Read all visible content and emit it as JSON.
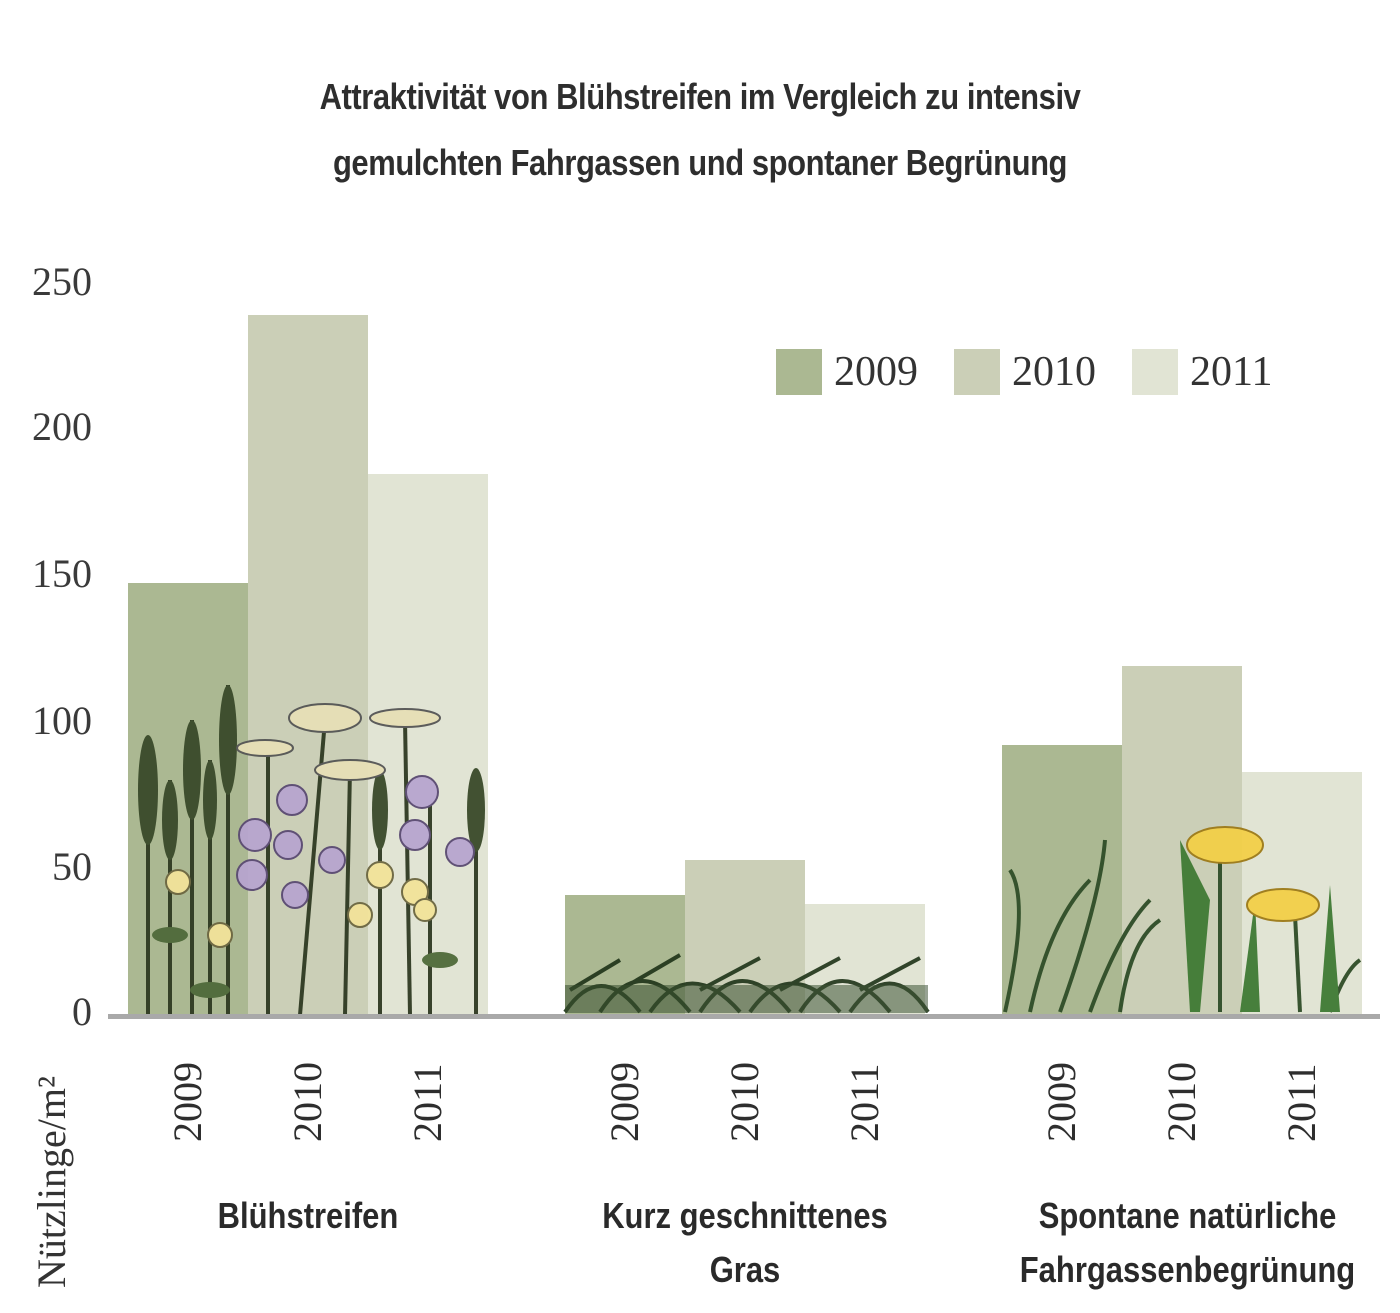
{
  "chart": {
    "title_line1": "Attraktivität von Blühstreifen im Vergleich zu intensiv",
    "title_line2": "gemulchten Fahrgassen und spontaner Begrünung",
    "ylabel": "Nützlinge/m²",
    "yticks": [
      "250",
      "200",
      "150",
      "100",
      "50",
      "0"
    ],
    "legend": [
      {
        "label": "2009",
        "color": "#abb892"
      },
      {
        "label": "2010",
        "color": "#cbcfb7"
      },
      {
        "label": "2011",
        "color": "#e1e4d4"
      }
    ],
    "groups": [
      {
        "label_line1": "Blühstreifen",
        "label_line2": "",
        "years": [
          "2009",
          "2010",
          "2011"
        ]
      },
      {
        "label_line1": "Kurz geschnittenes",
        "label_line2": "Gras",
        "years": [
          "2009",
          "2010",
          "2011"
        ]
      },
      {
        "label_line1": "Spontane natürliche",
        "label_line2": "Fahrgassenbegrünung",
        "years": [
          "2009",
          "2010",
          "2011"
        ]
      }
    ]
  },
  "chart_data": {
    "type": "bar",
    "title": "Attraktivität von Blühstreifen im Vergleich zu intensiv gemulchten Fahrgassen und spontaner Begrünung",
    "xlabel": "",
    "ylabel": "Nützlinge/m²",
    "ylim": [
      0,
      250
    ],
    "yticks": [
      0,
      50,
      100,
      150,
      200,
      250
    ],
    "grid": false,
    "legend_position": "upper right",
    "categories": [
      "Blühstreifen",
      "Kurz geschnittenes Gras",
      "Spontane natürliche Fahrgassenbegrünung"
    ],
    "series": [
      {
        "name": "2009",
        "color": "#abb892",
        "values": [
          147,
          41,
          92
        ]
      },
      {
        "name": "2010",
        "color": "#cbcfb7",
        "values": [
          238,
          53,
          119
        ]
      },
      {
        "name": "2011",
        "color": "#e1e4d4",
        "values": [
          184,
          38,
          83
        ]
      }
    ],
    "annotations": [
      "Illustrations: wildflowers (Blühstreifen), short grass (Kurz geschnittenes Gras), grass and dandelions (Spontane Begrünung)"
    ]
  }
}
